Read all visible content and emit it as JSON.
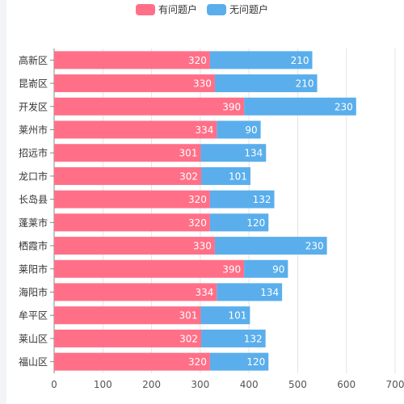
{
  "chart_data": {
    "type": "bar",
    "orientation": "horizontal",
    "stacked": true,
    "categories": [
      "高新区",
      "昆嵛区",
      "开发区",
      "莱州市",
      "招远市",
      "龙口市",
      "长岛县",
      "蓬莱市",
      "栖霞市",
      "莱阳市",
      "海阳市",
      "牟平区",
      "莱山区",
      "福山区"
    ],
    "series": [
      {
        "name": "有问题户",
        "color": "#ff7088",
        "values": [
          320,
          330,
          390,
          334,
          301,
          302,
          320,
          320,
          330,
          390,
          334,
          301,
          302,
          320
        ]
      },
      {
        "name": "无问题户",
        "color": "#5aaeec",
        "values": [
          210,
          210,
          230,
          90,
          134,
          101,
          132,
          120,
          230,
          90,
          134,
          101,
          132,
          120
        ]
      }
    ],
    "xlim": [
      0,
      700
    ],
    "xticks": [
      0,
      100,
      200,
      300,
      400,
      500,
      600,
      700
    ],
    "grid": true,
    "legend_position": "top-center",
    "data_labels": true
  }
}
